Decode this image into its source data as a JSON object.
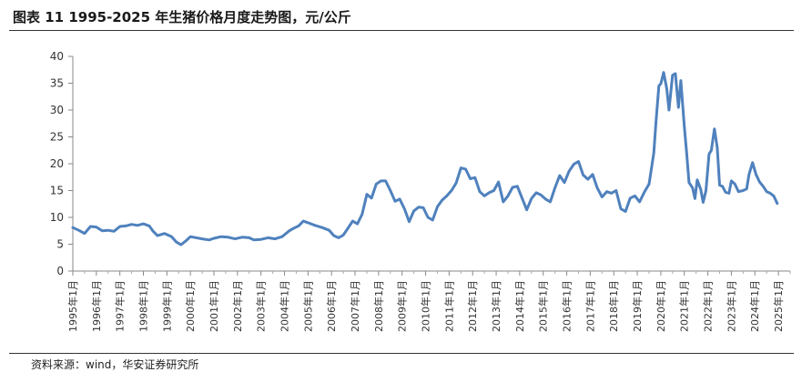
{
  "title": "图表 11 1995-2025 年生猪价格月度走势图，元/公斤",
  "source": "资料来源：wind，华安证券研究所",
  "chart_data": {
    "type": "line",
    "title": "图表 11 1995-2025 年生猪价格月度走势图，元/公斤",
    "xlabel": "",
    "ylabel": "",
    "ylim": [
      0,
      40
    ],
    "yticks": [
      0,
      5,
      10,
      15,
      20,
      25,
      30,
      35,
      40
    ],
    "xticks": [
      "1995年1月",
      "1996年1月",
      "1997年1月",
      "1998年1月",
      "1999年1月",
      "2000年1月",
      "2001年1月",
      "2002年1月",
      "2003年1月",
      "2004年1月",
      "2005年1月",
      "2006年1月",
      "2007年1月",
      "2008年1月",
      "2009年1月",
      "2010年1月",
      "2011年1月",
      "2012年1月",
      "2013年1月",
      "2014年1月",
      "2015年1月",
      "2016年1月",
      "2017年1月",
      "2018年1月",
      "2019年1月",
      "2020年1月",
      "2021年1月",
      "2022年1月",
      "2023年1月",
      "2024年1月",
      "2025年1月"
    ],
    "grid": false,
    "legend": "none",
    "line_color": "#4f81bd",
    "series": [
      {
        "x_start": "1995-01",
        "x_end": "2025-06",
        "points": [
          [
            1995.0,
            8.1
          ],
          [
            1995.25,
            7.6
          ],
          [
            1995.5,
            7.0
          ],
          [
            1995.75,
            8.3
          ],
          [
            1996.0,
            8.2
          ],
          [
            1996.25,
            7.5
          ],
          [
            1996.5,
            7.6
          ],
          [
            1996.75,
            7.4
          ],
          [
            1997.0,
            8.3
          ],
          [
            1997.25,
            8.4
          ],
          [
            1997.5,
            8.7
          ],
          [
            1997.75,
            8.5
          ],
          [
            1998.0,
            8.8
          ],
          [
            1998.25,
            8.4
          ],
          [
            1998.4,
            7.5
          ],
          [
            1998.6,
            6.6
          ],
          [
            1998.9,
            7.0
          ],
          [
            1999.2,
            6.4
          ],
          [
            1999.4,
            5.4
          ],
          [
            1999.6,
            4.9
          ],
          [
            1999.8,
            5.6
          ],
          [
            2000.0,
            6.4
          ],
          [
            2000.5,
            6.0
          ],
          [
            2000.8,
            5.8
          ],
          [
            2001.0,
            6.1
          ],
          [
            2001.3,
            6.4
          ],
          [
            2001.6,
            6.3
          ],
          [
            2001.9,
            6.0
          ],
          [
            2002.2,
            6.3
          ],
          [
            2002.5,
            6.2
          ],
          [
            2002.7,
            5.8
          ],
          [
            2003.0,
            5.9
          ],
          [
            2003.3,
            6.2
          ],
          [
            2003.6,
            6.0
          ],
          [
            2003.9,
            6.4
          ],
          [
            2004.2,
            7.5
          ],
          [
            2004.4,
            8.0
          ],
          [
            2004.6,
            8.4
          ],
          [
            2004.8,
            9.3
          ],
          [
            2005.0,
            9.0
          ],
          [
            2005.3,
            8.5
          ],
          [
            2005.6,
            8.1
          ],
          [
            2005.9,
            7.6
          ],
          [
            2006.1,
            6.6
          ],
          [
            2006.3,
            6.2
          ],
          [
            2006.5,
            6.7
          ],
          [
            2006.7,
            8.0
          ],
          [
            2006.9,
            9.3
          ],
          [
            2007.1,
            8.8
          ],
          [
            2007.3,
            10.6
          ],
          [
            2007.5,
            14.3
          ],
          [
            2007.7,
            13.6
          ],
          [
            2007.9,
            16.2
          ],
          [
            2008.1,
            16.8
          ],
          [
            2008.3,
            16.8
          ],
          [
            2008.5,
            15.0
          ],
          [
            2008.7,
            13.0
          ],
          [
            2008.9,
            13.4
          ],
          [
            2009.1,
            11.6
          ],
          [
            2009.3,
            9.2
          ],
          [
            2009.5,
            11.2
          ],
          [
            2009.7,
            11.9
          ],
          [
            2009.9,
            11.8
          ],
          [
            2010.1,
            10.0
          ],
          [
            2010.3,
            9.5
          ],
          [
            2010.5,
            12.0
          ],
          [
            2010.7,
            13.2
          ],
          [
            2010.9,
            14.0
          ],
          [
            2011.1,
            15.0
          ],
          [
            2011.3,
            16.4
          ],
          [
            2011.5,
            19.2
          ],
          [
            2011.7,
            19.0
          ],
          [
            2011.9,
            17.2
          ],
          [
            2012.1,
            17.4
          ],
          [
            2012.3,
            14.8
          ],
          [
            2012.5,
            14.0
          ],
          [
            2012.7,
            14.6
          ],
          [
            2012.9,
            15.0
          ],
          [
            2013.1,
            16.6
          ],
          [
            2013.3,
            12.9
          ],
          [
            2013.5,
            14.0
          ],
          [
            2013.7,
            15.6
          ],
          [
            2013.9,
            15.8
          ],
          [
            2014.1,
            13.6
          ],
          [
            2014.3,
            11.4
          ],
          [
            2014.5,
            13.5
          ],
          [
            2014.7,
            14.6
          ],
          [
            2014.9,
            14.2
          ],
          [
            2015.1,
            13.4
          ],
          [
            2015.3,
            12.9
          ],
          [
            2015.5,
            15.5
          ],
          [
            2015.7,
            17.8
          ],
          [
            2015.9,
            16.5
          ],
          [
            2016.1,
            18.6
          ],
          [
            2016.3,
            19.9
          ],
          [
            2016.5,
            20.4
          ],
          [
            2016.7,
            17.9
          ],
          [
            2016.9,
            17.1
          ],
          [
            2017.1,
            18.0
          ],
          [
            2017.3,
            15.5
          ],
          [
            2017.5,
            13.8
          ],
          [
            2017.7,
            14.8
          ],
          [
            2017.9,
            14.5
          ],
          [
            2018.1,
            15.0
          ],
          [
            2018.3,
            11.6
          ],
          [
            2018.5,
            11.1
          ],
          [
            2018.7,
            13.6
          ],
          [
            2018.9,
            14.0
          ],
          [
            2019.1,
            12.9
          ],
          [
            2019.3,
            14.7
          ],
          [
            2019.5,
            16.2
          ],
          [
            2019.7,
            22.0
          ],
          [
            2019.8,
            28.0
          ],
          [
            2019.92,
            34.5
          ],
          [
            2020.0,
            34.9
          ],
          [
            2020.12,
            37.0
          ],
          [
            2020.25,
            34.0
          ],
          [
            2020.35,
            30.0
          ],
          [
            2020.5,
            36.5
          ],
          [
            2020.62,
            36.8
          ],
          [
            2020.75,
            30.5
          ],
          [
            2020.85,
            35.5
          ],
          [
            2021.0,
            27.0
          ],
          [
            2021.1,
            22.0
          ],
          [
            2021.2,
            16.5
          ],
          [
            2021.35,
            15.5
          ],
          [
            2021.45,
            13.5
          ],
          [
            2021.55,
            17.0
          ],
          [
            2021.7,
            15.2
          ],
          [
            2021.8,
            12.8
          ],
          [
            2021.92,
            15.0
          ],
          [
            2022.05,
            21.8
          ],
          [
            2022.15,
            22.5
          ],
          [
            2022.28,
            26.5
          ],
          [
            2022.4,
            23.0
          ],
          [
            2022.5,
            16.0
          ],
          [
            2022.62,
            15.8
          ],
          [
            2022.75,
            14.7
          ],
          [
            2022.9,
            14.5
          ],
          [
            2023.0,
            16.8
          ],
          [
            2023.15,
            16.2
          ],
          [
            2023.3,
            14.8
          ],
          [
            2023.5,
            15.0
          ],
          [
            2023.65,
            15.3
          ],
          [
            2023.75,
            18.0
          ],
          [
            2023.9,
            20.2
          ],
          [
            2024.05,
            18.0
          ],
          [
            2024.2,
            16.6
          ],
          [
            2024.35,
            15.8
          ],
          [
            2024.5,
            14.8
          ],
          [
            2024.65,
            14.5
          ],
          [
            2024.8,
            14.0
          ],
          [
            2024.95,
            12.6
          ]
        ]
      }
    ]
  }
}
